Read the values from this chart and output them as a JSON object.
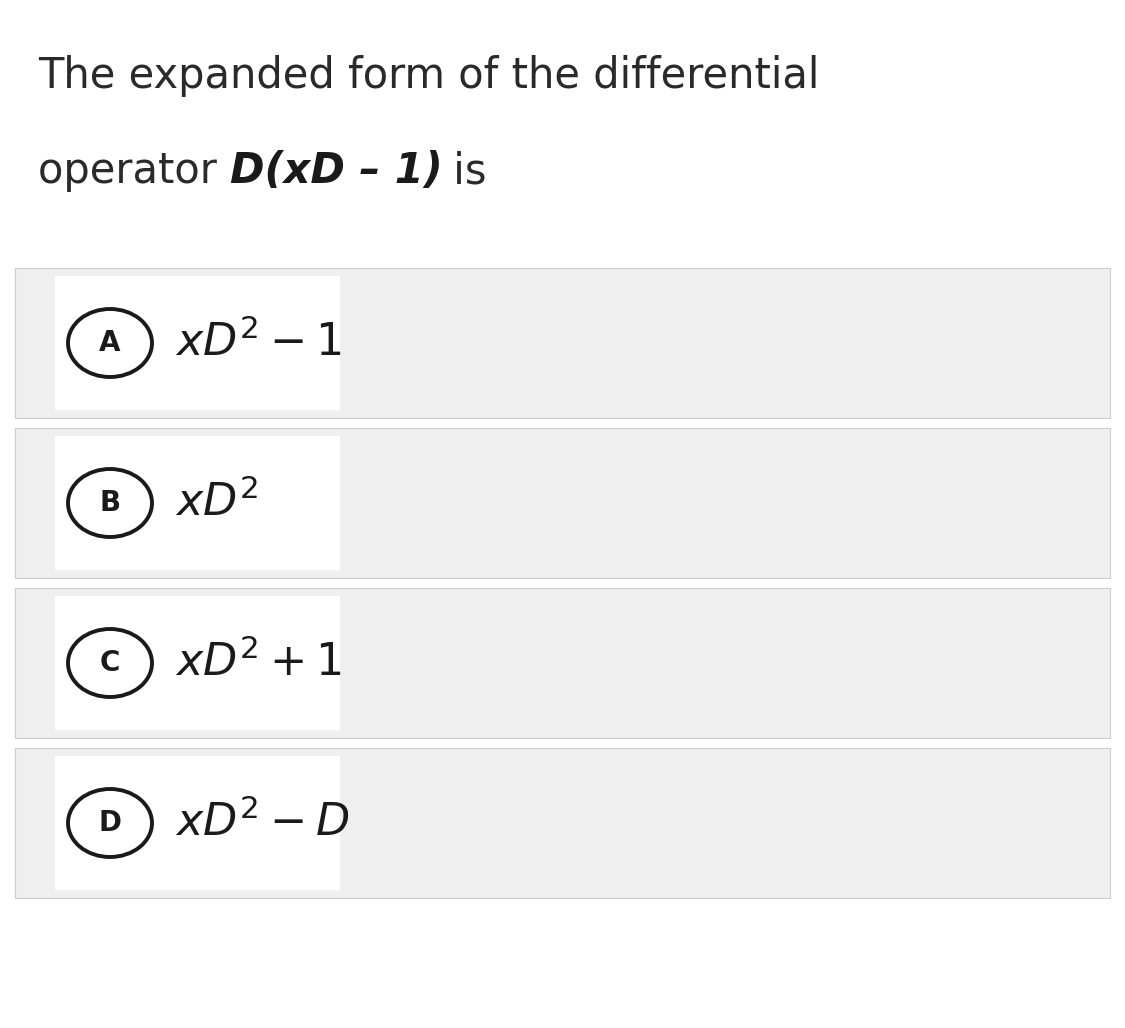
{
  "title_line1": "The expanded form of the differential",
  "title_line2_prefix": "operator ",
  "title_line2_math": "D(xD – 1)",
  "title_line2_suffix": " is",
  "bg_color": "#ffffff",
  "option_bg": "#efefef",
  "answer_box_bg": "#ffffff",
  "options": [
    {
      "label": "A",
      "latex": "$xD^2-1$"
    },
    {
      "label": "B",
      "latex": "$xD^2$"
    },
    {
      "label": "C",
      "latex": "$xD^2+1$"
    },
    {
      "label": "D",
      "latex": "$xD^2-D$"
    }
  ],
  "title_fontsize": 30,
  "math_fontsize": 30,
  "label_fontsize": 20,
  "fig_width": 11.25,
  "fig_height": 10.28,
  "dpi": 100
}
